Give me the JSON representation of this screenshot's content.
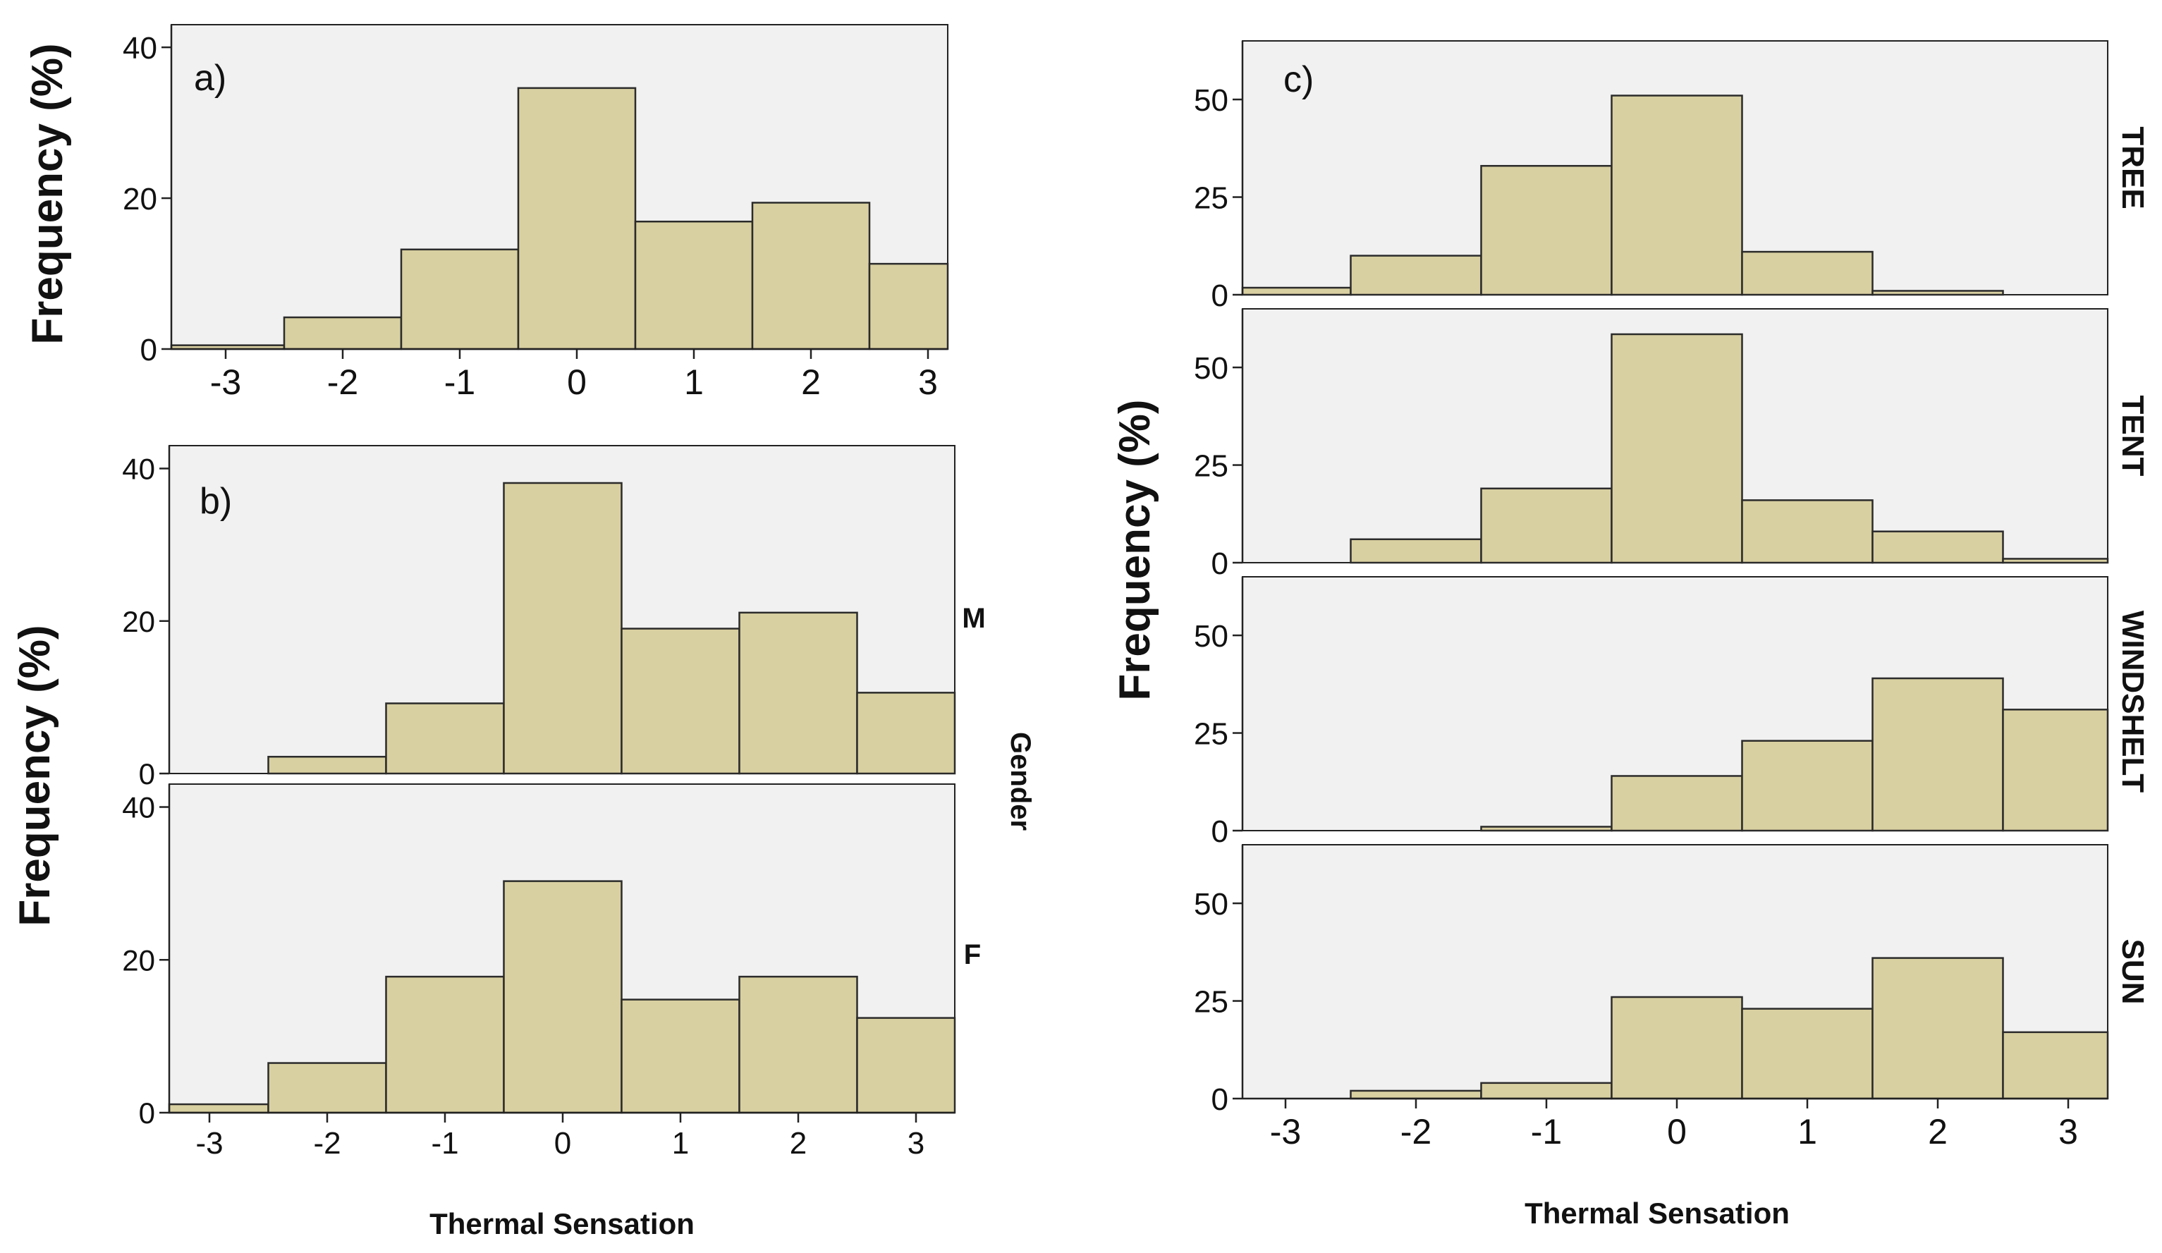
{
  "colors": {
    "bar_fill": "#D9D0A1",
    "bar_stroke": "#2b2b2b",
    "plot_bg": "#F1F1F1",
    "axis": "#222222",
    "text": "#111111"
  },
  "chart_data": [
    {
      "id": "a",
      "type": "bar",
      "title": "",
      "panel_label": "a)",
      "xlabel": "",
      "ylabel": "Frequency (%)",
      "categories": [
        "-3",
        "-2",
        "-1",
        "0",
        "1",
        "2",
        "3"
      ],
      "values": [
        0.5,
        4.2,
        13.2,
        34.6,
        16.9,
        19.4,
        11.3
      ],
      "ylim": [
        0,
        43
      ],
      "yticks": [
        0,
        20,
        40
      ],
      "xticks": [
        "-3",
        "-2",
        "-1",
        "0",
        "1",
        "2",
        "3"
      ],
      "grid": false
    },
    {
      "id": "b",
      "type": "bar",
      "panel_label": "b)",
      "xlabel": "Thermal Sensation",
      "ylabel": "Frequency (%)",
      "facet_title": "Gender",
      "categories": [
        "-3",
        "-2",
        "-1",
        "0",
        "1",
        "2",
        "3"
      ],
      "xticks": [
        "-3",
        "-2",
        "-1",
        "0",
        "1",
        "2",
        "3"
      ],
      "ylim": [
        0,
        43
      ],
      "yticks": [
        0,
        20,
        40
      ],
      "series": [
        {
          "name": "M",
          "values": [
            0,
            2.2,
            9.2,
            38.1,
            19.0,
            21.1,
            10.6
          ]
        },
        {
          "name": "F",
          "values": [
            1.1,
            6.5,
            17.8,
            30.3,
            14.8,
            17.8,
            12.4
          ]
        }
      ],
      "grid": false
    },
    {
      "id": "c",
      "type": "bar",
      "panel_label": "c)",
      "xlabel": "Thermal Sensation",
      "ylabel": "Frequency (%)",
      "categories": [
        "-3",
        "-2",
        "-1",
        "0",
        "1",
        "2",
        "3"
      ],
      "xticks": [
        "-3",
        "-2",
        "-1",
        "0",
        "1",
        "2",
        "3"
      ],
      "ylim": [
        0,
        65
      ],
      "yticks": [
        0,
        25,
        50
      ],
      "series": [
        {
          "name": "TREE",
          "values": [
            1.8,
            10.0,
            33.0,
            51.0,
            11.0,
            1.0,
            0
          ]
        },
        {
          "name": "TENT",
          "values": [
            0,
            6.0,
            19.0,
            58.5,
            16.0,
            8.0,
            1.0
          ]
        },
        {
          "name": "WINDSHELT",
          "values": [
            0,
            0,
            1.0,
            14.0,
            23.0,
            39.0,
            31.0
          ]
        },
        {
          "name": "SUN",
          "values": [
            0,
            2.0,
            4.0,
            26.0,
            23.0,
            36.0,
            17.0
          ]
        }
      ],
      "grid": false
    }
  ]
}
